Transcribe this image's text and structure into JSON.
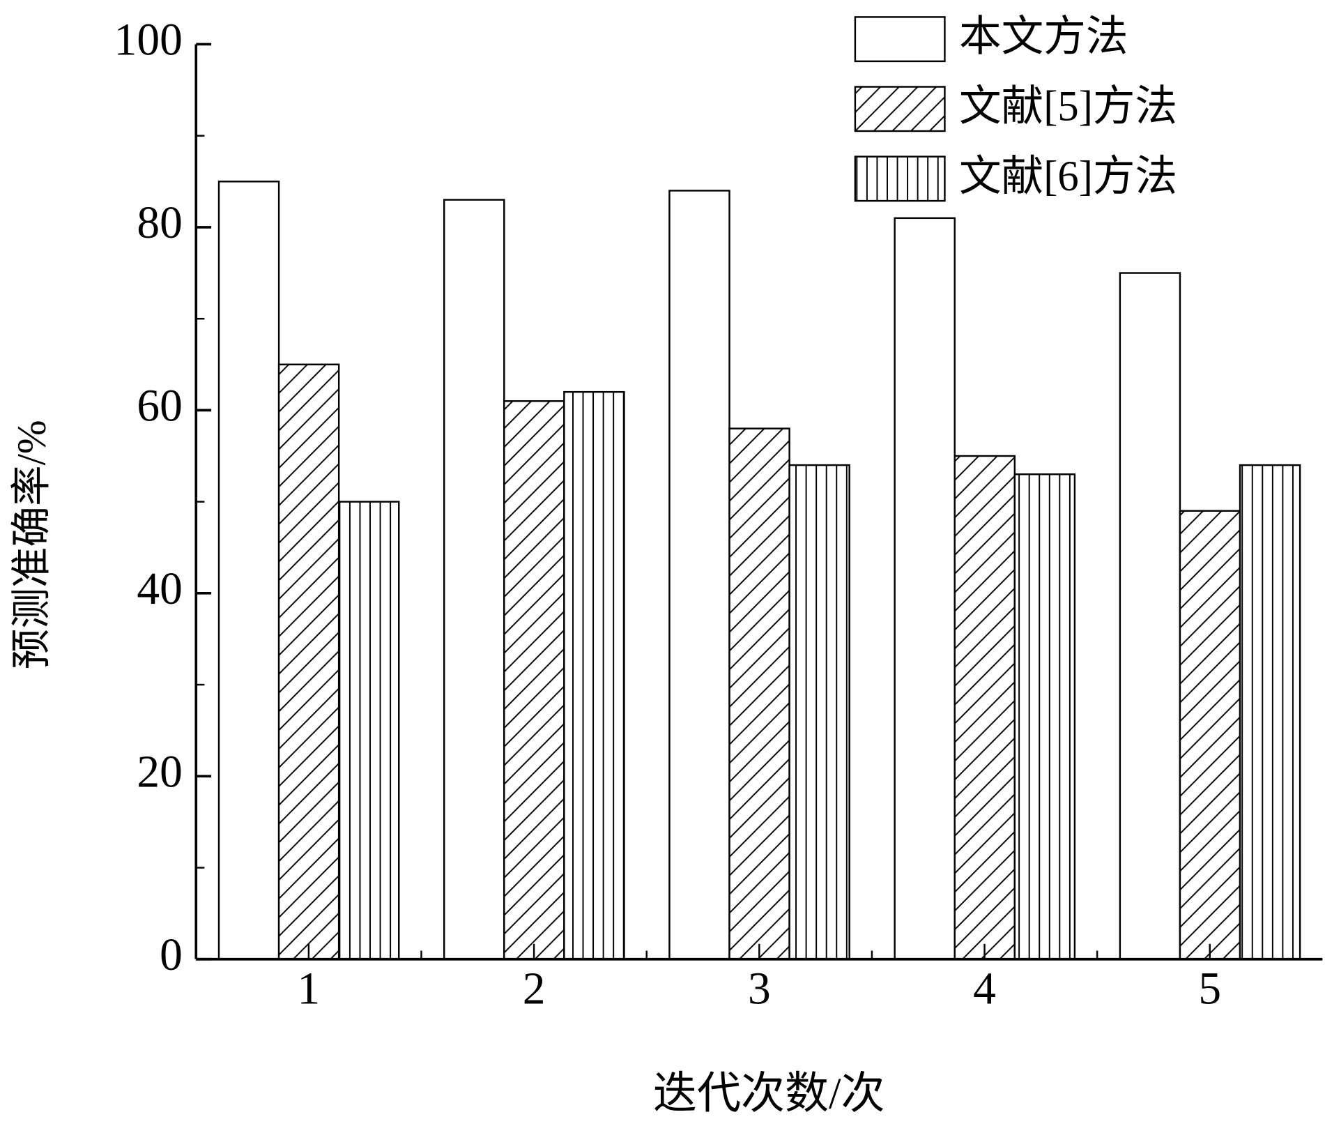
{
  "chart_data": {
    "type": "bar",
    "categories": [
      "1",
      "2",
      "3",
      "4",
      "5"
    ],
    "series": [
      {
        "name": "本文方法",
        "color": "#ffffff",
        "pattern": "none",
        "values": [
          85,
          83,
          84,
          81,
          75
        ]
      },
      {
        "name": "文献[5]方法",
        "color": "#ffffff",
        "pattern": "diagonal",
        "values": [
          65,
          61,
          58,
          55,
          49
        ]
      },
      {
        "name": "文献[6]方法",
        "color": "#ffffff",
        "pattern": "vertical",
        "values": [
          50,
          62,
          54,
          53,
          54
        ]
      }
    ],
    "x_label": "迭代次数/次",
    "y_label": "预测准确率/%",
    "ylim": [
      0,
      100
    ],
    "yticks": [
      0,
      20,
      40,
      60,
      80,
      100
    ],
    "yminor_ticks": [
      10,
      30,
      50,
      70,
      90
    ],
    "legend": "upper right",
    "grid": false
  }
}
